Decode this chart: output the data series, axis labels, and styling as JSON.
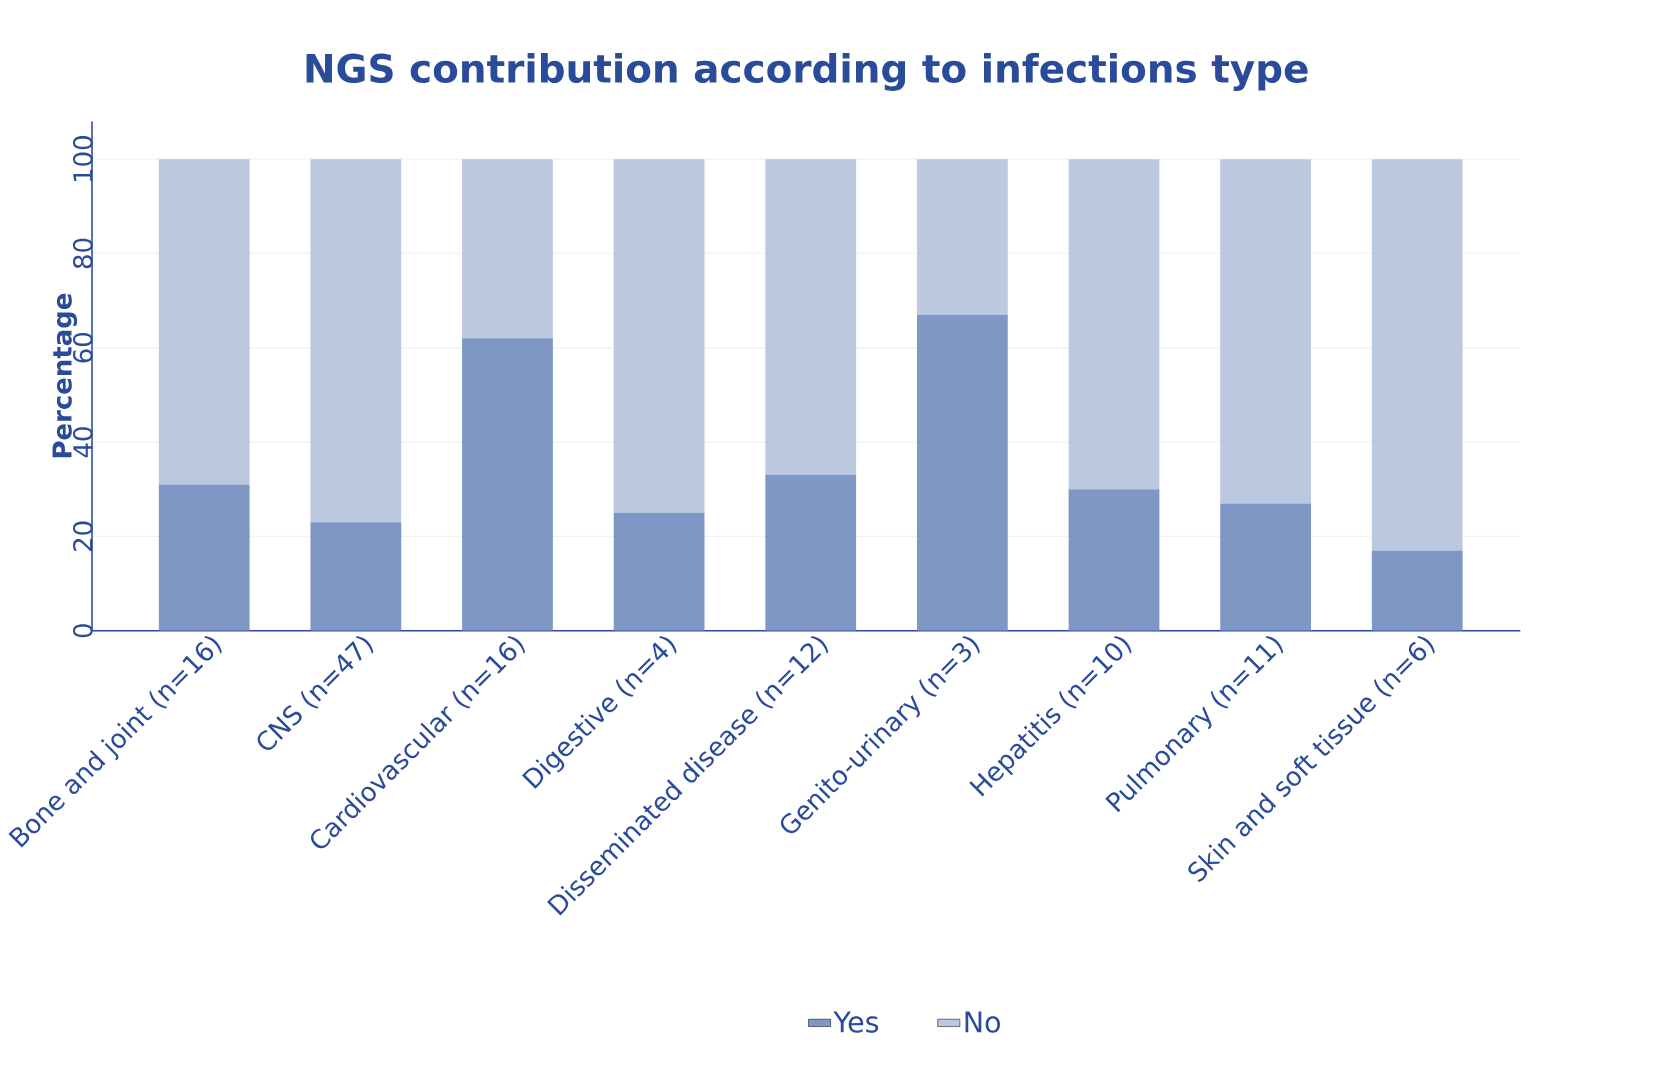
{
  "chart_data": {
    "type": "bar",
    "title": "NGS contribution according to infections type",
    "ylabel": "Percentage",
    "categories": [
      "Bone and joint (n=16)",
      "CNS (n=47)",
      "Cardiovascular (n=16)",
      "Digestive (n=4)",
      "Disseminated disease (n=12)",
      "Genito-urinary (n=3)",
      "Hepatitis (n=10)",
      "Pulmonary (n=11)",
      "Skin and soft tissue (n=6)"
    ],
    "series": [
      {
        "name": "Yes",
        "color": "#7f97c5",
        "values": [
          31,
          23,
          62,
          25,
          33,
          67,
          30,
          27,
          17
        ]
      },
      {
        "name": "No",
        "color": "#bcc8e0",
        "values": [
          69,
          77,
          38,
          75,
          67,
          33,
          70,
          73,
          83
        ]
      }
    ],
    "stacked": true,
    "ylim": [
      0,
      108
    ],
    "yticks": [
      0,
      20,
      40,
      60,
      80,
      100
    ],
    "grid": "y",
    "legend": "bottom"
  }
}
